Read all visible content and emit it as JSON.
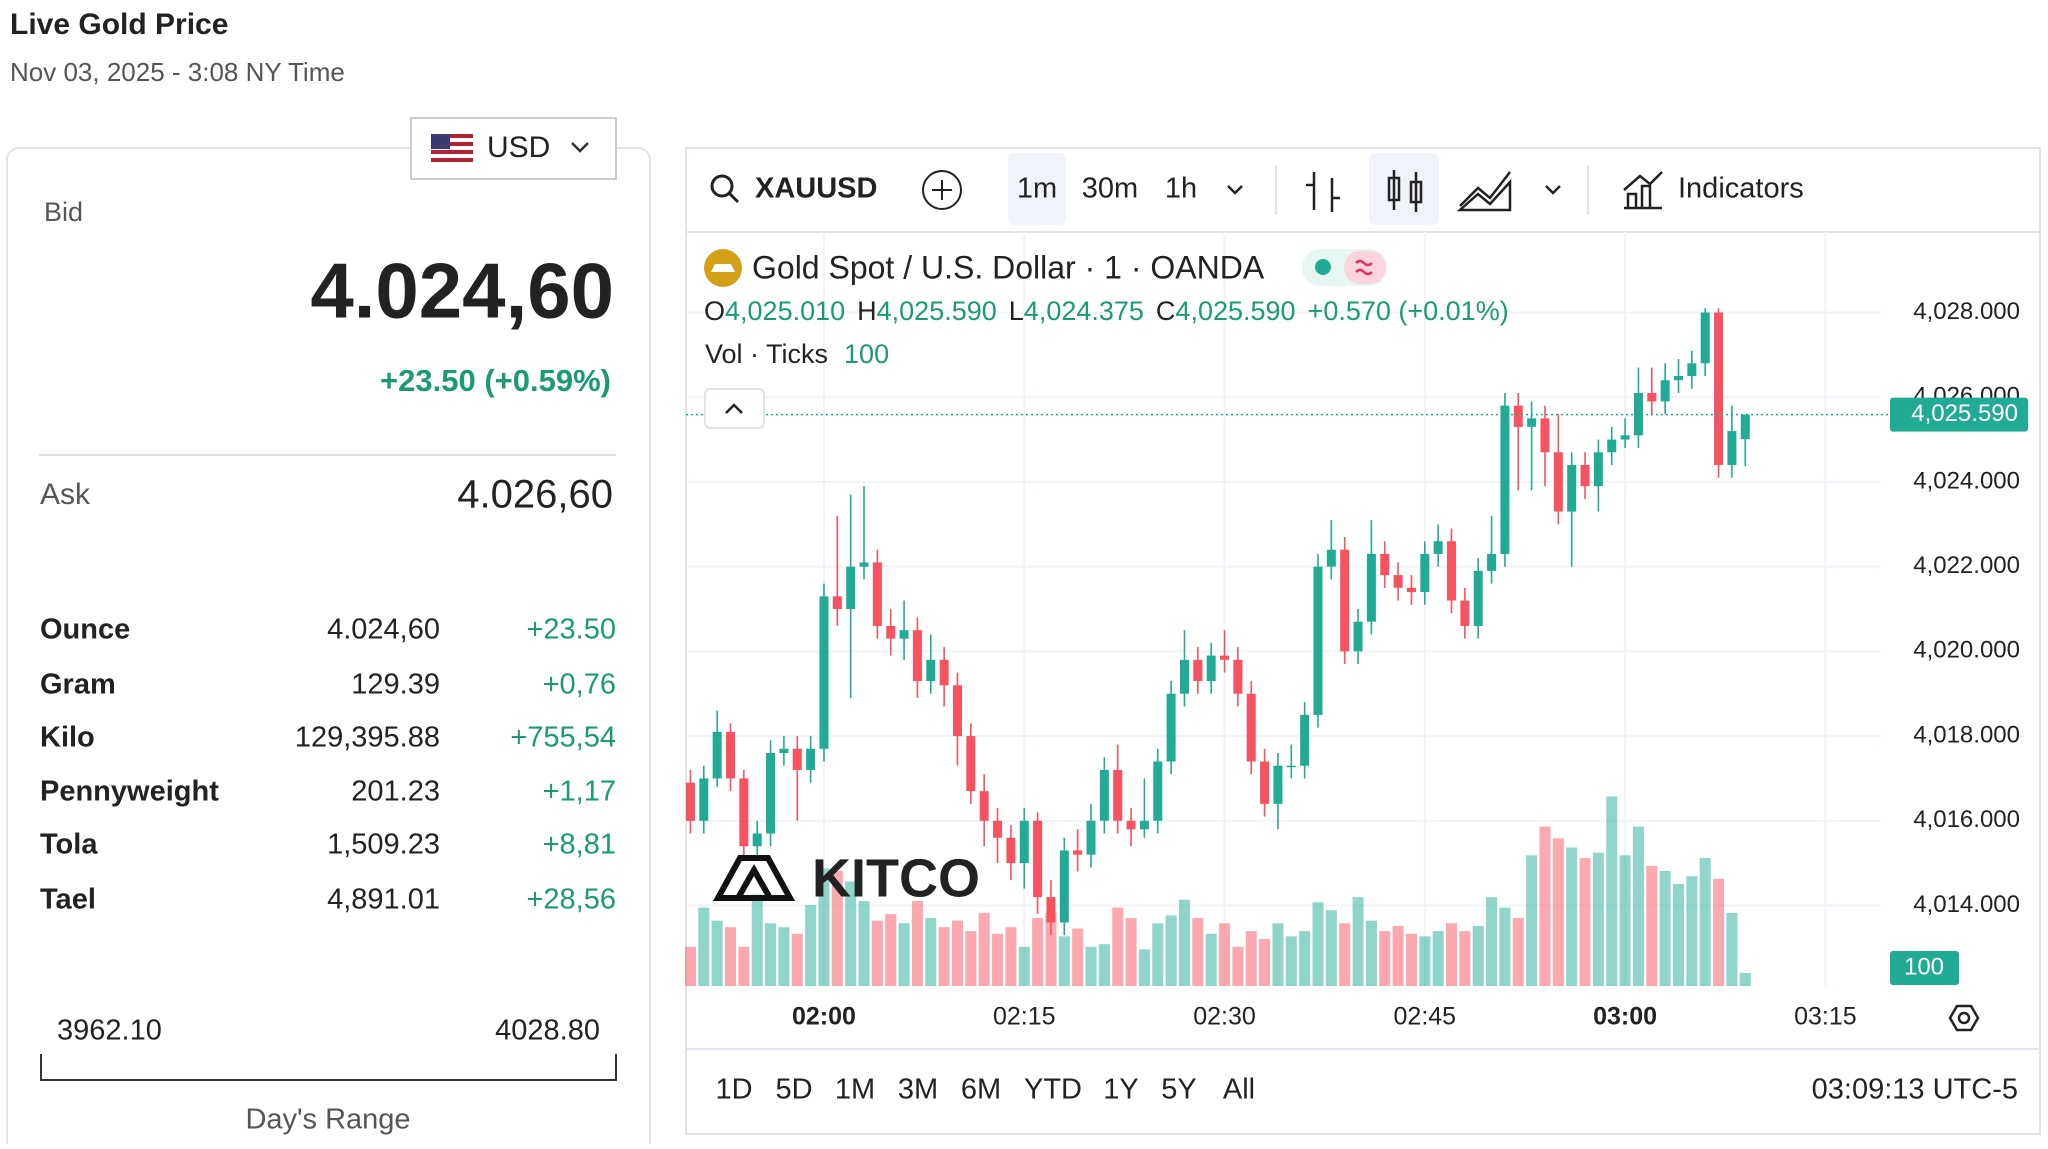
{
  "header": {
    "title": "Live Gold Price",
    "date": "Nov 03, 2025 - 3:08 NY Time",
    "currency": "USD"
  },
  "quote": {
    "bid_label": "Bid",
    "bid": "4.024,60",
    "change": "+23.50 (+0.59%)",
    "ask_label": "Ask",
    "ask": "4.026,60"
  },
  "table": {
    "rows": [
      [
        "Ounce",
        "4.024,60",
        "+23.50"
      ],
      [
        "Gram",
        "129.39",
        "+0,76"
      ],
      [
        "Kilo",
        "129,395.88",
        "+755,54"
      ],
      [
        "Pennyweight",
        "201.23",
        "+1,17"
      ],
      [
        "Tola",
        "1,509.23",
        "+8,81"
      ],
      [
        "Tael",
        "4,891.01",
        "+28,56"
      ]
    ]
  },
  "range": {
    "low": "3962.10",
    "high": "4028.80",
    "label": "Day's Range"
  },
  "toolbar": {
    "symbol": "XAUUSD",
    "intervals": [
      "1m",
      "30m",
      "1h"
    ],
    "indicators": "Indicators"
  },
  "legend": {
    "title": "Gold Spot / U.S. Dollar · 1 · OANDA",
    "o": "O",
    "open": "4,025.010",
    "h": "H",
    "high": "4,025.590",
    "l": "L",
    "low": "4,024.375",
    "c": "C",
    "close": "4,025.590",
    "change": "+0.570 (+0.01%)",
    "vol": "Vol · Ticks",
    "vol_value": "100"
  },
  "watermark": "KITCO",
  "ranges": [
    "1D",
    "5D",
    "1M",
    "3M",
    "6M",
    "YTD",
    "1Y",
    "5Y",
    "All"
  ],
  "clock": "03:09:13 UTC-5",
  "chart_data": {
    "type": "candlestick",
    "up_color": "#22ab94",
    "down_color": "#f7525f",
    "grid": true,
    "price_label": "4,025.590",
    "x": [
      "01:50",
      "01:51",
      "01:52",
      "01:53",
      "01:54",
      "01:55",
      "01:56",
      "01:57",
      "01:58",
      "01:59",
      "02:00",
      "02:01",
      "02:02",
      "02:03",
      "02:04",
      "02:05",
      "02:06",
      "02:07",
      "02:08",
      "02:09",
      "02:10",
      "02:11",
      "02:12",
      "02:13",
      "02:14",
      "02:15",
      "02:16",
      "02:17",
      "02:18",
      "02:19",
      "02:20",
      "02:21",
      "02:22",
      "02:23",
      "02:24",
      "02:25",
      "02:26",
      "02:27",
      "02:28",
      "02:29",
      "02:30",
      "02:31",
      "02:32",
      "02:33",
      "02:34",
      "02:35",
      "02:36",
      "02:37",
      "02:38",
      "02:39",
      "02:40",
      "02:41",
      "02:42",
      "02:43",
      "02:44",
      "02:45",
      "02:46",
      "02:47",
      "02:48",
      "02:49",
      "02:50",
      "02:51",
      "02:52",
      "02:53",
      "02:54",
      "02:55",
      "02:56",
      "02:57",
      "02:58",
      "02:59",
      "03:00",
      "03:01",
      "03:02",
      "03:03",
      "03:04",
      "03:05",
      "03:06",
      "03:07",
      "03:08",
      "03:09"
    ],
    "candles": [
      [
        4016.9,
        4017.2,
        4015.7,
        4016.0
      ],
      [
        4016.0,
        4017.3,
        4015.7,
        4017.0
      ],
      [
        4017.0,
        4018.6,
        4016.8,
        4018.1
      ],
      [
        4018.1,
        4018.3,
        4016.7,
        4017.0
      ],
      [
        4017.0,
        4017.2,
        4015.1,
        4015.4
      ],
      [
        4015.4,
        4016.0,
        4015.1,
        4015.7
      ],
      [
        4015.7,
        4017.9,
        4015.4,
        4017.6
      ],
      [
        4017.6,
        4018.0,
        4017.3,
        4017.7
      ],
      [
        4017.7,
        4018.0,
        4016.0,
        4017.2
      ],
      [
        4017.2,
        4018.0,
        4016.9,
        4017.7
      ],
      [
        4017.7,
        4021.6,
        4017.4,
        4021.3
      ],
      [
        4021.3,
        4023.2,
        4020.6,
        4021.0
      ],
      [
        4021.0,
        4023.7,
        4018.9,
        4022.0
      ],
      [
        4022.0,
        4023.9,
        4021.7,
        4022.1
      ],
      [
        4022.1,
        4022.4,
        4020.3,
        4020.6
      ],
      [
        4020.6,
        4021.0,
        4019.9,
        4020.3
      ],
      [
        4020.3,
        4021.2,
        4019.8,
        4020.5
      ],
      [
        4020.5,
        4020.8,
        4018.9,
        4019.3
      ],
      [
        4019.3,
        4020.4,
        4019.0,
        4019.8
      ],
      [
        4019.8,
        4020.1,
        4018.7,
        4019.2
      ],
      [
        4019.2,
        4019.5,
        4017.3,
        4018.0
      ],
      [
        4018.0,
        4018.3,
        4016.4,
        4016.7
      ],
      [
        4016.7,
        4017.1,
        4015.4,
        4016.0
      ],
      [
        4016.0,
        4016.3,
        4015.0,
        4015.6
      ],
      [
        4015.6,
        4015.9,
        4014.6,
        4015.0
      ],
      [
        4015.0,
        4016.3,
        4014.4,
        4016.0
      ],
      [
        4016.0,
        4016.2,
        4013.8,
        4014.2
      ],
      [
        4014.2,
        4014.6,
        4013.3,
        4013.6
      ],
      [
        4013.6,
        4015.6,
        4013.3,
        4015.3
      ],
      [
        4015.3,
        4015.8,
        4014.8,
        4015.2
      ],
      [
        4015.2,
        4016.4,
        4014.9,
        4016.0
      ],
      [
        4016.0,
        4017.5,
        4015.7,
        4017.2
      ],
      [
        4017.2,
        4017.8,
        4015.7,
        4016.0
      ],
      [
        4016.0,
        4016.3,
        4015.4,
        4015.8
      ],
      [
        4015.8,
        4017.0,
        4015.6,
        4016.0
      ],
      [
        4016.0,
        4017.7,
        4015.7,
        4017.4
      ],
      [
        4017.4,
        4019.3,
        4017.1,
        4019.0
      ],
      [
        4019.0,
        4020.5,
        4018.7,
        4019.8
      ],
      [
        4019.8,
        4020.1,
        4019.0,
        4019.3
      ],
      [
        4019.3,
        4020.2,
        4019.0,
        4019.9
      ],
      [
        4019.9,
        4020.5,
        4019.5,
        4019.8
      ],
      [
        4019.8,
        4020.1,
        4018.7,
        4019.0
      ],
      [
        4019.0,
        4019.3,
        4017.1,
        4017.4
      ],
      [
        4017.4,
        4017.7,
        4016.1,
        4016.4
      ],
      [
        4016.4,
        4017.6,
        4015.8,
        4017.3
      ],
      [
        4017.3,
        4017.8,
        4017.0,
        4017.3
      ],
      [
        4017.3,
        4018.8,
        4017.0,
        4018.5
      ],
      [
        4018.5,
        4022.3,
        4018.2,
        4022.0
      ],
      [
        4022.0,
        4023.1,
        4021.7,
        4022.4
      ],
      [
        4022.4,
        4022.7,
        4019.7,
        4020.0
      ],
      [
        4020.0,
        4021.0,
        4019.7,
        4020.7
      ],
      [
        4020.7,
        4023.1,
        4020.4,
        4022.3
      ],
      [
        4022.3,
        4022.6,
        4021.5,
        4021.8
      ],
      [
        4021.8,
        4022.1,
        4021.2,
        4021.5
      ],
      [
        4021.5,
        4021.8,
        4021.1,
        4021.4
      ],
      [
        4021.4,
        4022.6,
        4021.1,
        4022.3
      ],
      [
        4022.3,
        4023.0,
        4022.0,
        4022.6
      ],
      [
        4022.6,
        4022.9,
        4020.9,
        4021.2
      ],
      [
        4021.2,
        4021.5,
        4020.3,
        4020.6
      ],
      [
        4020.6,
        4022.2,
        4020.3,
        4021.9
      ],
      [
        4021.9,
        4023.2,
        4021.6,
        4022.3
      ],
      [
        4022.3,
        4026.1,
        4022.0,
        4025.8
      ],
      [
        4025.8,
        4026.1,
        4023.8,
        4025.3
      ],
      [
        4025.3,
        4025.9,
        4023.8,
        4025.5
      ],
      [
        4025.5,
        4025.8,
        4023.9,
        4024.7
      ],
      [
        4024.7,
        4025.6,
        4023.0,
        4023.3
      ],
      [
        4023.3,
        4024.7,
        4022.0,
        4024.4
      ],
      [
        4024.4,
        4024.7,
        4023.6,
        4023.9
      ],
      [
        4023.9,
        4025.0,
        4023.3,
        4024.7
      ],
      [
        4024.7,
        4025.3,
        4024.4,
        4025.0
      ],
      [
        4025.0,
        4025.5,
        4024.8,
        4025.1
      ],
      [
        4025.1,
        4026.7,
        4024.8,
        4026.1
      ],
      [
        4026.1,
        4026.7,
        4025.6,
        4025.9
      ],
      [
        4025.9,
        4026.8,
        4025.6,
        4026.4
      ],
      [
        4026.4,
        4026.9,
        4026.1,
        4026.5
      ],
      [
        4026.5,
        4027.1,
        4026.2,
        4026.8
      ],
      [
        4026.8,
        4028.1,
        4026.5,
        4028.0
      ],
      [
        4028.0,
        4028.1,
        4024.1,
        4024.4
      ],
      [
        4024.4,
        4025.8,
        4024.1,
        4025.2
      ],
      [
        4025.01,
        4025.59,
        4024.375,
        4025.59
      ]
    ],
    "volume": [
      300,
      600,
      500,
      450,
      300,
      700,
      480,
      450,
      400,
      620,
      900,
      880,
      800,
      650,
      500,
      550,
      480,
      650,
      520,
      450,
      500,
      420,
      560,
      400,
      450,
      300,
      520,
      560,
      380,
      440,
      300,
      320,
      600,
      520,
      280,
      480,
      540,
      660,
      520,
      400,
      480,
      300,
      420,
      360,
      480,
      380,
      420,
      640,
      580,
      480,
      680,
      500,
      420,
      460,
      400,
      380,
      420,
      480,
      420,
      460,
      680,
      600,
      520,
      1000,
      1220,
      1130,
      1060,
      980,
      1020,
      1450,
      1000,
      1220,
      920,
      880,
      780,
      840,
      980,
      820,
      560,
      100
    ],
    "vlim": [
      0,
      5770
    ],
    "ylim": [
      4012.1,
      4029.9
    ],
    "yticks": [
      {
        "value": 4014,
        "label": "4,014.000"
      },
      {
        "value": 4016,
        "label": "4,016.000"
      },
      {
        "value": 4018,
        "label": "4,018.000"
      },
      {
        "value": 4020,
        "label": "4,020.000"
      },
      {
        "value": 4022,
        "label": "4,022.000"
      },
      {
        "value": 4024,
        "label": "4,024.000"
      },
      {
        "value": 4026,
        "label": "4,026.000"
      },
      {
        "value": 4028,
        "label": "4,028.000"
      }
    ],
    "xlim": [
      "01:49:40",
      "03:19:10"
    ],
    "xticks": [
      "02:00",
      "02:15",
      "02:30",
      "02:45",
      "03:00",
      "03:15"
    ]
  }
}
